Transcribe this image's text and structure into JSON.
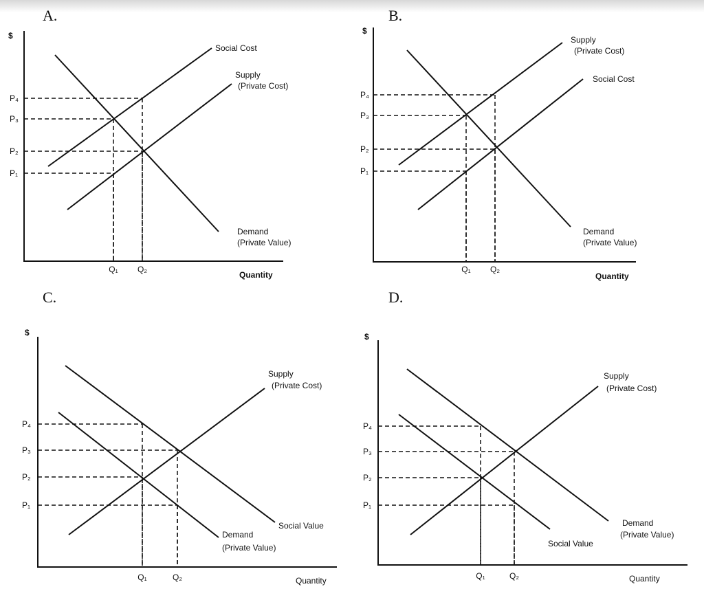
{
  "panels": [
    {
      "label": "A.",
      "currency": "$",
      "curve_labels": [
        "Social Cost",
        "Supply",
        "(Private Cost)",
        "Demand",
        "(Private Value)"
      ],
      "price_labels": [
        "P₄",
        "P₃",
        "P₂",
        "P₁"
      ],
      "quantity_labels": [
        "Q₁",
        "Q₂"
      ],
      "axis_label": "Quantity"
    },
    {
      "label": "B.",
      "currency": "$",
      "curve_labels": [
        "Supply",
        "(Private Cost)",
        "Social Cost",
        "Demand",
        "(Private Value)"
      ],
      "price_labels": [
        "P₄",
        "P₃",
        "P₂",
        "P₁"
      ],
      "quantity_labels": [
        "Q₁",
        "Q₂"
      ],
      "axis_label": "Quantity"
    },
    {
      "label": "C.",
      "currency": "$",
      "curve_labels": [
        "Supply",
        "(Private Cost)",
        "Social Value",
        "Demand",
        "(Private Value)"
      ],
      "price_labels": [
        "P₄",
        "P₃",
        "P₂",
        "P₁"
      ],
      "quantity_labels": [
        "Q₁",
        "Q₂"
      ],
      "axis_label": "Quantity"
    },
    {
      "label": "D.",
      "currency": "$",
      "curve_labels": [
        "Supply",
        "(Private Cost)",
        "Demand",
        "(Private Value)",
        "Social Value"
      ],
      "price_labels": [
        "P₄",
        "P₃",
        "P₂",
        "P₁"
      ],
      "quantity_labels": [
        "Q₁",
        "Q₂"
      ],
      "axis_label": "Quantity"
    }
  ]
}
